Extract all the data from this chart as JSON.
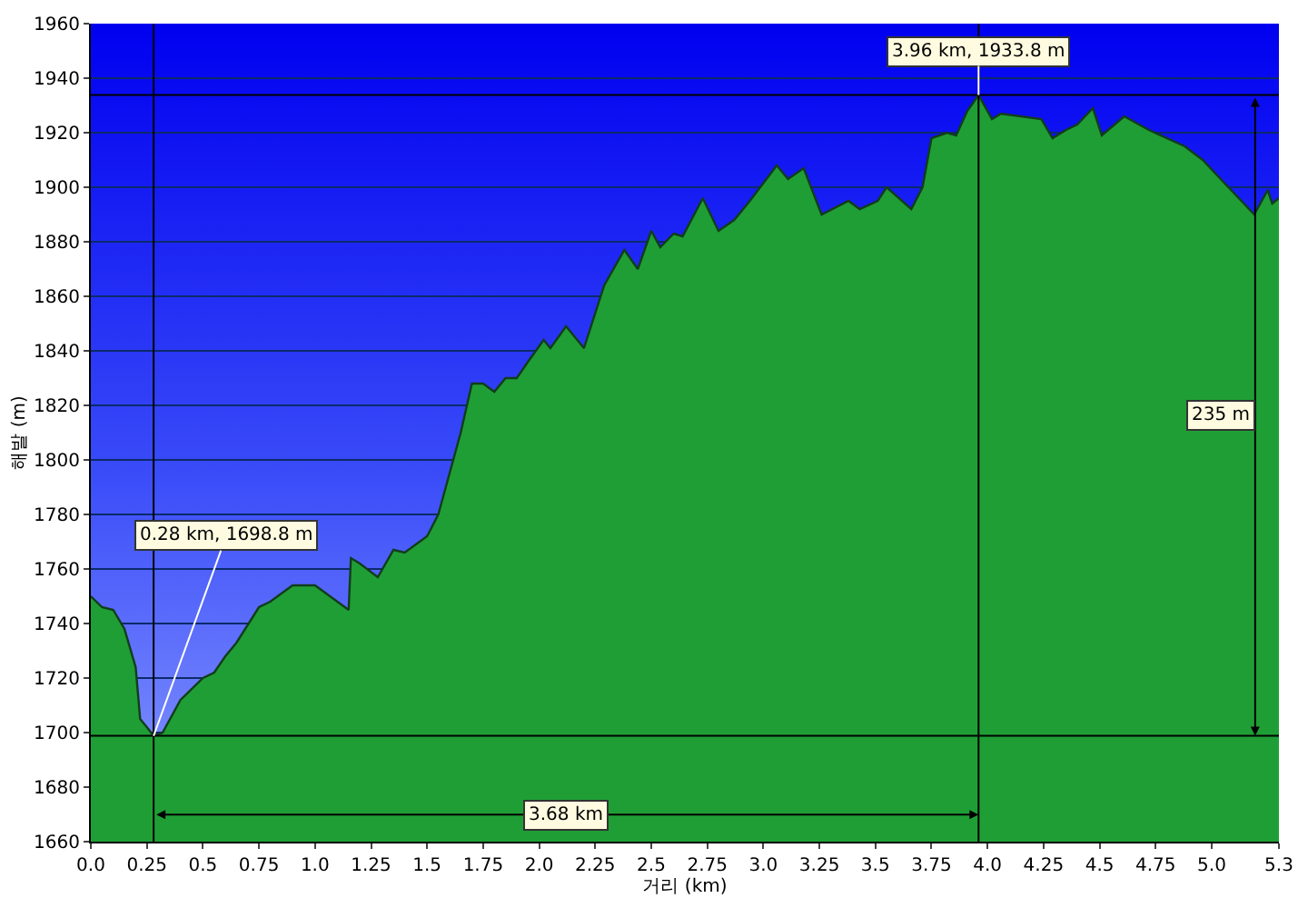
{
  "chart_data": {
    "type": "area",
    "xlabel": "거리 (km)",
    "ylabel": "해발 (m)",
    "x": [
      0,
      0.05,
      0.1,
      0.15,
      0.2,
      0.22,
      0.25,
      0.28,
      0.32,
      0.4,
      0.5,
      0.55,
      0.6,
      0.65,
      0.75,
      0.8,
      0.9,
      1.0,
      1.1,
      1.15,
      1.16,
      1.2,
      1.28,
      1.35,
      1.4,
      1.5,
      1.55,
      1.6,
      1.65,
      1.7,
      1.75,
      1.8,
      1.85,
      1.9,
      1.95,
      2.02,
      2.05,
      2.12,
      2.2,
      2.29,
      2.38,
      2.44,
      2.5,
      2.54,
      2.6,
      2.64,
      2.73,
      2.8,
      2.87,
      2.94,
      3.06,
      3.11,
      3.18,
      3.26,
      3.38,
      3.43,
      3.51,
      3.55,
      3.66,
      3.71,
      3.75,
      3.82,
      3.86,
      3.91,
      3.96,
      4.02,
      4.06,
      4.24,
      4.29,
      4.35,
      4.4,
      4.47,
      4.51,
      4.61,
      4.72,
      4.88,
      4.96,
      5.04,
      5.19,
      5.25,
      5.27,
      5.3
    ],
    "series": [
      {
        "color": "#1f9e35",
        "values": [
          1750,
          1746,
          1745,
          1738,
          1724,
          1705,
          1702,
          1698.8,
          1700,
          1712,
          1720,
          1722,
          1728,
          1733,
          1746,
          1748,
          1754,
          1754,
          1748,
          1745,
          1764,
          1762,
          1757,
          1767,
          1766,
          1772,
          1780,
          1795,
          1810,
          1828,
          1828,
          1825,
          1830,
          1830,
          1836,
          1844,
          1841,
          1849,
          1841,
          1864,
          1877,
          1870,
          1884,
          1878,
          1883,
          1882,
          1896,
          1884,
          1888,
          1895,
          1908,
          1903,
          1907,
          1890,
          1895,
          1892,
          1895,
          1900,
          1892,
          1900,
          1918,
          1920,
          1919,
          1928,
          1933.8,
          1925,
          1927,
          1925,
          1918,
          1921,
          1923,
          1929,
          1919,
          1926,
          1921,
          1915,
          1910,
          1903,
          1890,
          1899,
          1894,
          1896
        ]
      }
    ],
    "xlim": [
      0,
      5.3
    ],
    "ylim": [
      1660,
      1960
    ],
    "xticks": [
      {
        "value": 0,
        "label": "0.0"
      },
      0.25,
      0.5,
      0.75,
      {
        "value": 1,
        "label": "1.0"
      },
      1.25,
      1.5,
      1.75,
      {
        "value": 2,
        "label": "2.0"
      },
      2.25,
      2.5,
      2.75,
      {
        "value": 3,
        "label": "3.0"
      },
      3.25,
      3.5,
      3.75,
      {
        "value": 4,
        "label": "4.0"
      },
      4.25,
      4.5,
      4.75,
      {
        "value": 5,
        "label": "5.0"
      },
      5.3
    ],
    "yticks": [
      1660,
      1680,
      1700,
      1720,
      1740,
      1760,
      1780,
      1800,
      1820,
      1840,
      1860,
      1880,
      1900,
      1920,
      1940,
      1960
    ],
    "grid": "y",
    "ref_lines": [
      {
        "axis": "x",
        "value": 0.28,
        "color": "#000000"
      },
      {
        "axis": "x",
        "value": 3.96,
        "color": "#000000"
      },
      {
        "axis": "y",
        "value": 1698.8,
        "color": "#000000"
      },
      {
        "axis": "y",
        "value": 1933.8,
        "color": "#000000"
      }
    ],
    "annotations": [
      {
        "text": "0.28 km, 1698.8 m",
        "x": 0.28,
        "y": 1698.8
      },
      {
        "text": "3.96 km, 1933.8 m",
        "x": 3.96,
        "y": 1933.8
      },
      "3.68 km",
      "235 m"
    ]
  }
}
